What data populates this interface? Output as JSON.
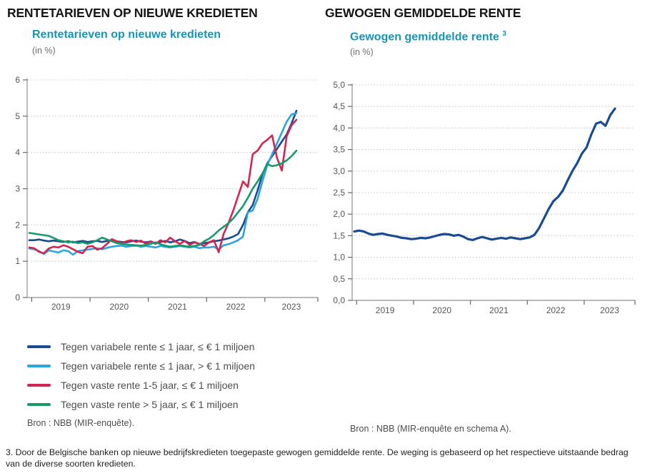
{
  "panels": {
    "left": {
      "heading": "RENTETARIEVEN OP NIEUWE KREDIETEN",
      "subtitle": "Rentetarieven op nieuwe kredieten",
      "unit": "(in %)",
      "source": "Bron : NBB (MIR-enquête)."
    },
    "right": {
      "heading": "GEWOGEN GEMIDDELDE RENTE",
      "subtitle": "Gewogen gemiddelde rente",
      "subtitle_sup": "3",
      "unit": "(in %)",
      "source": "Bron : NBB (MIR-enquête en schema A)."
    }
  },
  "footnote": "3. Door de Belgische banken op nieuwe bedrijfskredieten toegepaste gewogen gemiddelde rente. De weging is gebaseerd op het respectieve uitstaande bedrag van de diverse soorten kredieten.",
  "colors": {
    "navy": "#1a4a8f",
    "light_blue": "#2aa5e0",
    "red": "#d5244f",
    "green": "#169a6a",
    "teal_title": "#1795b4",
    "axis": "#8f8f8f",
    "grid": "#c4c4c4",
    "tick_text": "#555555"
  },
  "chart_data": [
    {
      "type": "line",
      "title": "Rentetarieven op nieuwe kredieten",
      "ylabel": "in %",
      "frequency": "monthly",
      "x_start": "2018-12",
      "x_end": "2023-07",
      "x_tick_labels": [
        "2019",
        "2020",
        "2021",
        "2022",
        "2023"
      ],
      "ylim": [
        0,
        6
      ],
      "y_tick_values": [
        0,
        1,
        2,
        3,
        4,
        5,
        6
      ],
      "y_tick_labels": [
        "0",
        "1",
        "2",
        "3",
        "4",
        "5",
        "6"
      ],
      "grid": "dotted-horizontal",
      "legend_position": "below",
      "series": [
        {
          "name": "Tegen variabele rente ≤ 1 jaar, ≤ € 1 miljoen",
          "color": "#1a4a8f",
          "values": [
            1.58,
            1.58,
            1.6,
            1.57,
            1.55,
            1.57,
            1.55,
            1.53,
            1.55,
            1.52,
            1.54,
            1.56,
            1.53,
            1.55,
            1.56,
            1.53,
            1.56,
            1.58,
            1.55,
            1.53,
            1.52,
            1.55,
            1.57,
            1.54,
            1.52,
            1.54,
            1.5,
            1.53,
            1.56,
            1.52,
            1.55,
            1.6,
            1.56,
            1.5,
            1.53,
            1.48,
            1.5,
            1.52,
            1.55,
            1.57,
            1.6,
            1.63,
            1.68,
            1.75,
            2.0,
            2.35,
            2.55,
            2.95,
            3.4,
            3.7,
            3.9,
            4.1,
            4.3,
            4.5,
            4.8,
            5.15
          ]
        },
        {
          "name": "Tegen variabele rente ≤ 1 jaar, > € 1 miljoen",
          "color": "#2aa5e0",
          "values": [
            1.35,
            1.33,
            1.28,
            1.2,
            1.3,
            1.27,
            1.24,
            1.3,
            1.28,
            1.18,
            1.28,
            1.3,
            1.32,
            1.34,
            1.36,
            1.33,
            1.37,
            1.4,
            1.42,
            1.43,
            1.4,
            1.42,
            1.43,
            1.4,
            1.42,
            1.4,
            1.38,
            1.42,
            1.4,
            1.38,
            1.4,
            1.42,
            1.4,
            1.38,
            1.4,
            1.36,
            1.38,
            1.38,
            1.4,
            1.32,
            1.44,
            1.47,
            1.52,
            1.58,
            1.68,
            2.35,
            2.4,
            2.72,
            3.2,
            3.65,
            3.95,
            4.25,
            4.55,
            4.85,
            5.05,
            5.08
          ]
        },
        {
          "name": "Tegen vaste rente 1-5 jaar, ≤ € 1 miljoen",
          "color": "#d5244f",
          "values": [
            1.38,
            1.36,
            1.26,
            1.22,
            1.35,
            1.4,
            1.38,
            1.44,
            1.4,
            1.33,
            1.26,
            1.22,
            1.4,
            1.42,
            1.32,
            1.36,
            1.48,
            1.61,
            1.55,
            1.5,
            1.55,
            1.58,
            1.53,
            1.57,
            1.48,
            1.55,
            1.48,
            1.58,
            1.52,
            1.65,
            1.55,
            1.48,
            1.56,
            1.45,
            1.52,
            1.48,
            1.42,
            1.52,
            1.58,
            1.25,
            1.75,
            2.05,
            2.4,
            2.8,
            3.2,
            3.05,
            3.95,
            4.05,
            4.25,
            4.35,
            4.47,
            3.85,
            3.5,
            4.45,
            4.75,
            4.9
          ]
        },
        {
          "name": "Tegen vaste rente > 5 jaar, ≤ € 1 miljoen",
          "color": "#169a6a",
          "values": [
            1.78,
            1.76,
            1.74,
            1.72,
            1.7,
            1.64,
            1.58,
            1.55,
            1.52,
            1.54,
            1.5,
            1.52,
            1.48,
            1.52,
            1.58,
            1.65,
            1.6,
            1.55,
            1.5,
            1.48,
            1.46,
            1.45,
            1.44,
            1.43,
            1.45,
            1.48,
            1.52,
            1.47,
            1.43,
            1.4,
            1.42,
            1.44,
            1.42,
            1.4,
            1.42,
            1.45,
            1.55,
            1.62,
            1.72,
            1.85,
            1.95,
            2.05,
            2.18,
            2.35,
            2.52,
            2.75,
            3.0,
            3.2,
            3.42,
            3.68,
            3.62,
            3.65,
            3.7,
            3.78,
            3.9,
            4.05
          ]
        }
      ]
    },
    {
      "type": "line",
      "title": "Gewogen gemiddelde rente",
      "ylabel": "in %",
      "frequency": "monthly",
      "x_start": "2018-12",
      "x_end": "2023-07",
      "x_tick_labels": [
        "2019",
        "2020",
        "2021",
        "2022",
        "2023"
      ],
      "ylim": [
        0,
        5
      ],
      "y_tick_values": [
        0,
        0.5,
        1,
        1.5,
        2,
        2.5,
        3,
        3.5,
        4,
        4.5,
        5
      ],
      "y_tick_labels": [
        "0,0",
        "0,5",
        "1,0",
        "1,5",
        "2,0",
        "2,5",
        "3,0",
        "3,5",
        "4,0",
        "4,5",
        "5,0"
      ],
      "grid": "dotted-horizontal",
      "legend_position": "none",
      "series": [
        {
          "name": "Gewogen gemiddelde rente",
          "color": "#1a4a8f",
          "values": [
            1.6,
            1.62,
            1.6,
            1.55,
            1.52,
            1.54,
            1.55,
            1.52,
            1.5,
            1.48,
            1.45,
            1.44,
            1.42,
            1.43,
            1.45,
            1.44,
            1.46,
            1.49,
            1.52,
            1.54,
            1.53,
            1.5,
            1.52,
            1.48,
            1.42,
            1.4,
            1.44,
            1.47,
            1.44,
            1.41,
            1.43,
            1.45,
            1.43,
            1.46,
            1.44,
            1.42,
            1.44,
            1.46,
            1.52,
            1.68,
            1.9,
            2.12,
            2.3,
            2.4,
            2.55,
            2.78,
            3.0,
            3.18,
            3.4,
            3.55,
            3.85,
            4.1,
            4.14,
            4.05,
            4.3,
            4.45
          ]
        }
      ]
    }
  ]
}
